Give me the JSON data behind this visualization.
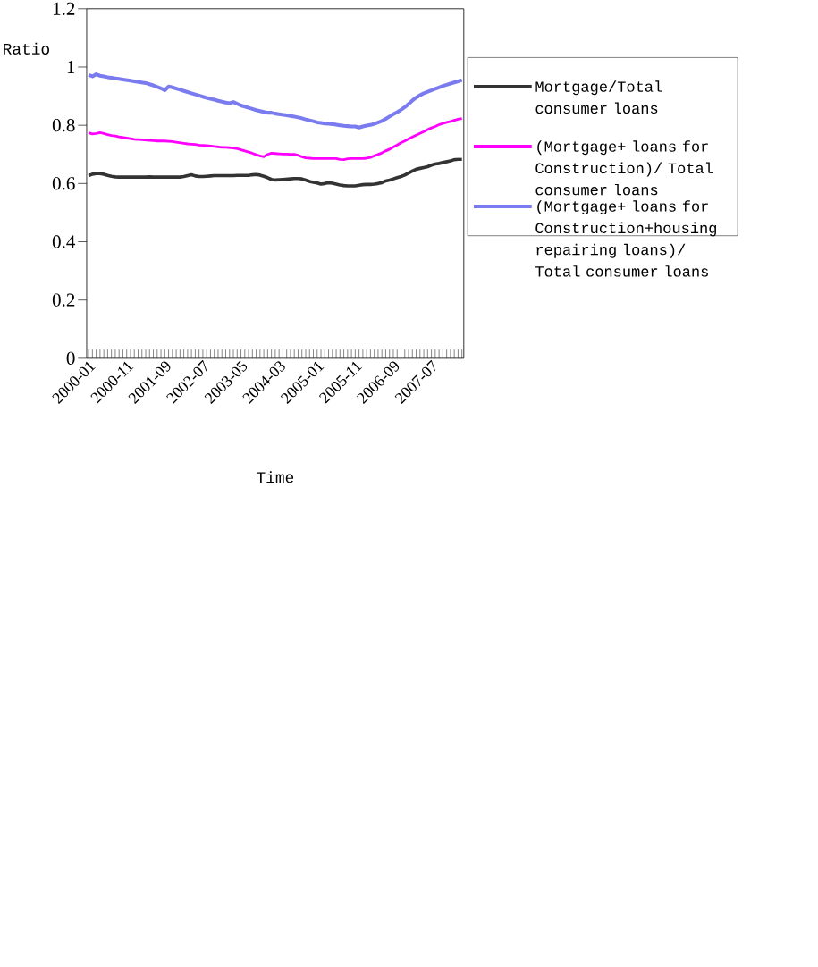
{
  "chart_data": {
    "type": "line",
    "xlabel": "Time",
    "ylabel": "Ratio",
    "categories": [
      "2000-01",
      null,
      null,
      null,
      null,
      null,
      null,
      null,
      null,
      null,
      "2000-11",
      null,
      null,
      null,
      null,
      null,
      null,
      null,
      null,
      null,
      "2001-09",
      null,
      null,
      null,
      null,
      null,
      null,
      null,
      null,
      null,
      "2002-07",
      null,
      null,
      null,
      null,
      null,
      null,
      null,
      null,
      null,
      "2003-05",
      null,
      null,
      null,
      null,
      null,
      null,
      null,
      null,
      null,
      "2004-03",
      null,
      null,
      null,
      null,
      null,
      null,
      null,
      null,
      null,
      "2005-01",
      null,
      null,
      null,
      null,
      null,
      null,
      null,
      null,
      null,
      "2005-11",
      null,
      null,
      null,
      null,
      null,
      null,
      null,
      null,
      null,
      "2006-09",
      null,
      null,
      null,
      null,
      null,
      null,
      null,
      null,
      null,
      "2007-07",
      null,
      null,
      null,
      null,
      null,
      null,
      null,
      null
    ],
    "series": [
      {
        "name": "Mortgage/Total consumer loans",
        "color": "#333333",
        "values": [
          0.627,
          0.632,
          0.634,
          0.634,
          0.632,
          0.628,
          0.625,
          0.623,
          0.622,
          0.622,
          0.622,
          0.622,
          0.622,
          0.622,
          0.622,
          0.622,
          0.623,
          0.622,
          0.622,
          0.622,
          0.622,
          0.622,
          0.622,
          0.622,
          0.622,
          0.624,
          0.627,
          0.63,
          0.626,
          0.624,
          0.624,
          0.625,
          0.626,
          0.627,
          0.627,
          0.627,
          0.627,
          0.627,
          0.627,
          0.628,
          0.628,
          0.628,
          0.628,
          0.63,
          0.631,
          0.629,
          0.625,
          0.62,
          0.614,
          0.612,
          0.613,
          0.614,
          0.615,
          0.616,
          0.617,
          0.617,
          0.616,
          0.612,
          0.607,
          0.604,
          0.602,
          0.598,
          0.6,
          0.603,
          0.601,
          0.598,
          0.595,
          0.593,
          0.592,
          0.592,
          0.592,
          0.594,
          0.596,
          0.597,
          0.597,
          0.598,
          0.6,
          0.603,
          0.609,
          0.612,
          0.616,
          0.62,
          0.624,
          0.629,
          0.636,
          0.643,
          0.649,
          0.652,
          0.655,
          0.658,
          0.663,
          0.667,
          0.669,
          0.672,
          0.675,
          0.678,
          0.682,
          0.683,
          0.683
        ]
      },
      {
        "name": "(Mortgage+ loans for Construction)/ Total consumer loans",
        "color": "#ff00ff",
        "values": [
          0.774,
          0.77,
          0.772,
          0.775,
          0.772,
          0.768,
          0.765,
          0.763,
          0.76,
          0.758,
          0.756,
          0.754,
          0.752,
          0.751,
          0.75,
          0.749,
          0.748,
          0.747,
          0.746,
          0.746,
          0.746,
          0.745,
          0.744,
          0.742,
          0.74,
          0.738,
          0.736,
          0.735,
          0.734,
          0.732,
          0.731,
          0.73,
          0.729,
          0.727,
          0.726,
          0.724,
          0.724,
          0.723,
          0.722,
          0.72,
          0.716,
          0.712,
          0.708,
          0.704,
          0.699,
          0.695,
          0.692,
          0.7,
          0.704,
          0.703,
          0.702,
          0.701,
          0.701,
          0.7,
          0.7,
          0.697,
          0.692,
          0.688,
          0.687,
          0.686,
          0.686,
          0.686,
          0.686,
          0.686,
          0.686,
          0.686,
          0.683,
          0.682,
          0.685,
          0.686,
          0.686,
          0.686,
          0.686,
          0.687,
          0.69,
          0.695,
          0.7,
          0.705,
          0.712,
          0.718,
          0.725,
          0.732,
          0.74,
          0.746,
          0.753,
          0.76,
          0.766,
          0.772,
          0.778,
          0.785,
          0.791,
          0.796,
          0.802,
          0.806,
          0.81,
          0.813,
          0.817,
          0.821,
          0.823
        ]
      },
      {
        "name": "(Mortgage+ loans for Construction+housing repairing loans)/ Total consumer loans",
        "color": "#7b7bf0",
        "values": [
          0.973,
          0.968,
          0.975,
          0.97,
          0.968,
          0.965,
          0.963,
          0.961,
          0.959,
          0.957,
          0.955,
          0.953,
          0.951,
          0.949,
          0.947,
          0.945,
          0.941,
          0.937,
          0.932,
          0.927,
          0.92,
          0.933,
          0.93,
          0.926,
          0.922,
          0.918,
          0.914,
          0.91,
          0.906,
          0.902,
          0.898,
          0.894,
          0.891,
          0.888,
          0.884,
          0.881,
          0.878,
          0.876,
          0.88,
          0.874,
          0.868,
          0.864,
          0.86,
          0.856,
          0.852,
          0.849,
          0.846,
          0.843,
          0.843,
          0.84,
          0.838,
          0.836,
          0.834,
          0.832,
          0.83,
          0.827,
          0.824,
          0.82,
          0.817,
          0.814,
          0.81,
          0.808,
          0.806,
          0.805,
          0.804,
          0.802,
          0.8,
          0.798,
          0.797,
          0.796,
          0.796,
          0.792,
          0.796,
          0.799,
          0.801,
          0.805,
          0.81,
          0.815,
          0.822,
          0.83,
          0.838,
          0.845,
          0.853,
          0.862,
          0.873,
          0.885,
          0.895,
          0.903,
          0.91,
          0.915,
          0.92,
          0.925,
          0.93,
          0.935,
          0.939,
          0.943,
          0.947,
          0.951,
          0.955
        ]
      }
    ],
    "ylim": [
      0,
      1.2
    ],
    "yticks": [
      0,
      0.2,
      0.4,
      0.6,
      0.8,
      1,
      1.2
    ],
    "legend": "right"
  }
}
